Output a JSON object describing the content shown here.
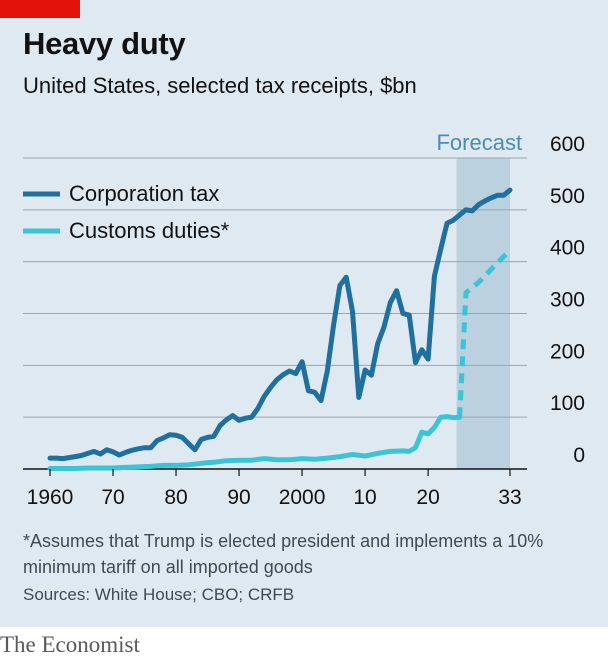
{
  "header": {
    "title": "Heavy duty",
    "subtitle": "United States, selected tax receipts, $bn"
  },
  "footer": {
    "note": "*Assumes that Trump is elected president and implements a 10% minimum tariff on all imported goods",
    "sources": "Sources: White House; CBO; CRFB",
    "brand": "The Economist"
  },
  "colors": {
    "background": "#dfe9f1",
    "corporation": "#1f6f9f",
    "customs": "#3bc4d8",
    "forecast_band": "#b5ccdc",
    "grid": "#9aa6ae",
    "accent": "#e3120b"
  },
  "chart_data": {
    "type": "line",
    "forecast_label": "Forecast",
    "forecast_range": [
      2025,
      2033
    ],
    "xlim": [
      1960,
      2033
    ],
    "ylim": [
      0,
      600
    ],
    "y_axis_side": "right",
    "grid": true,
    "legend_position": "top-left",
    "xticks": [
      {
        "value": 1960,
        "label": "1960"
      },
      {
        "value": 1970,
        "label": "70"
      },
      {
        "value": 1980,
        "label": "80"
      },
      {
        "value": 1990,
        "label": "90"
      },
      {
        "value": 2000,
        "label": "2000"
      },
      {
        "value": 2010,
        "label": "10"
      },
      {
        "value": 2020,
        "label": "20"
      },
      {
        "value": 2033,
        "label": "33"
      }
    ],
    "yticks": [
      0,
      100,
      200,
      300,
      400,
      500,
      600
    ],
    "series": [
      {
        "name": "Corporation tax",
        "color_key": "corporation",
        "x": [
          1960,
          1961,
          1962,
          1963,
          1964,
          1965,
          1966,
          1967,
          1968,
          1969,
          1970,
          1971,
          1972,
          1973,
          1974,
          1975,
          1976,
          1977,
          1978,
          1979,
          1980,
          1981,
          1982,
          1983,
          1984,
          1985,
          1986,
          1987,
          1988,
          1989,
          1990,
          1991,
          1992,
          1993,
          1994,
          1995,
          1996,
          1997,
          1998,
          1999,
          2000,
          2001,
          2002,
          2003,
          2004,
          2005,
          2006,
          2007,
          2008,
          2009,
          2010,
          2011,
          2012,
          2013,
          2014,
          2015,
          2016,
          2017,
          2018,
          2019,
          2020,
          2021,
          2022,
          2023,
          2024,
          2025,
          2026,
          2027,
          2028,
          2029,
          2030,
          2031,
          2032,
          2033
        ],
        "values": [
          21,
          21,
          20,
          22,
          24,
          26,
          30,
          34,
          29,
          37,
          33,
          27,
          32,
          36,
          39,
          41,
          41,
          55,
          60,
          66,
          65,
          61,
          49,
          37,
          57,
          61,
          63,
          84,
          95,
          103,
          94,
          98,
          100,
          117,
          140,
          157,
          172,
          182,
          189,
          184,
          207,
          151,
          148,
          132,
          189,
          278,
          354,
          370,
          304,
          138,
          191,
          181,
          242,
          274,
          321,
          344,
          300,
          297,
          205,
          230,
          212,
          372,
          424,
          474,
          480,
          490,
          500,
          498,
          510,
          517,
          523,
          528,
          528,
          538
        ],
        "forecast_start": 2025
      },
      {
        "name": "Customs duties*",
        "color_key": "customs",
        "x": [
          1960,
          1962,
          1964,
          1966,
          1968,
          1970,
          1972,
          1974,
          1976,
          1978,
          1980,
          1982,
          1984,
          1986,
          1988,
          1990,
          1992,
          1994,
          1996,
          1998,
          2000,
          2002,
          2004,
          2006,
          2008,
          2010,
          2012,
          2014,
          2016,
          2017,
          2018,
          2019,
          2020,
          2021,
          2022,
          2023,
          2024,
          2025,
          2026,
          2028,
          2030,
          2032,
          2033
        ],
        "values": [
          1,
          1,
          1,
          2,
          2,
          2,
          3,
          4,
          5,
          7,
          7,
          8,
          11,
          13,
          16,
          17,
          17,
          20,
          18,
          18,
          20,
          19,
          21,
          24,
          28,
          25,
          30,
          34,
          35,
          34,
          41,
          71,
          68,
          80,
          100,
          101,
          99,
          100,
          340,
          360,
          385,
          410,
          420
        ],
        "forecast_start": 2025
      }
    ]
  }
}
